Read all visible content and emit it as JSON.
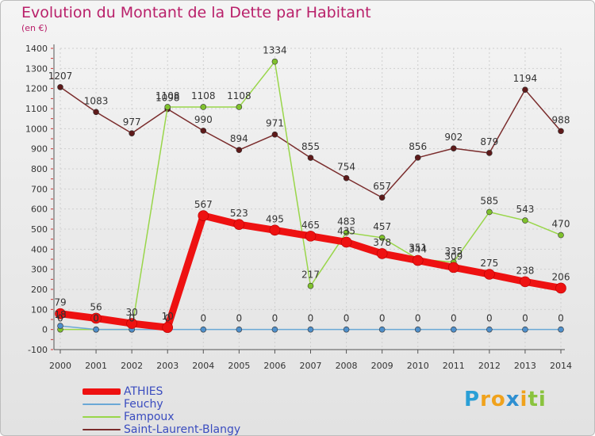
{
  "title": "Evolution du Montant de la Dette par Habitant",
  "subtitle": "(en €)",
  "logo": {
    "text": "Proxiti",
    "letters": [
      "P",
      "r",
      "o",
      "x",
      "i",
      "t",
      "i"
    ],
    "colors": [
      "#2a9fd6",
      "#f0a21c",
      "#f0a21c",
      "#2e8fd1",
      "#f0a21c",
      "#8ac33e",
      "#8ac33e"
    ]
  },
  "chart_data": {
    "type": "line",
    "x": [
      "2000",
      "2001",
      "2002",
      "2003",
      "2004",
      "2005",
      "2006",
      "2007",
      "2008",
      "2009",
      "2010",
      "2011",
      "2012",
      "2013",
      "2014"
    ],
    "ylim": [
      -100,
      1400
    ],
    "yticks": [
      -100,
      0,
      100,
      200,
      300,
      400,
      500,
      600,
      700,
      800,
      900,
      1000,
      1100,
      1200,
      1300,
      1400
    ],
    "grid": true,
    "legend_position": "bottom-left",
    "series": [
      {
        "name": "ATHIES",
        "color": "#ee1111",
        "marker": "#ee1111",
        "width": 9,
        "values": [
          79,
          56,
          30,
          10,
          567,
          523,
          495,
          465,
          435,
          378,
          344,
          309,
          275,
          238,
          206
        ],
        "labels": [
          "79",
          "56",
          "30",
          "10",
          "567",
          "523",
          "495",
          "465",
          "435",
          "378",
          "344",
          "309",
          "275",
          "238",
          "206"
        ]
      },
      {
        "name": "Feuchy",
        "color": "#6aa8d6",
        "marker": "#4f8fca",
        "width": 1.5,
        "values": [
          18,
          0,
          0,
          0,
          0,
          0,
          0,
          0,
          0,
          0,
          0,
          0,
          0,
          0,
          0
        ],
        "labels": [
          "18",
          "0",
          "0",
          "0",
          "0",
          "0",
          "0",
          "0",
          "0",
          "0",
          "0",
          "0",
          "0",
          "0",
          "0"
        ]
      },
      {
        "name": "Fampoux",
        "color": "#99d64a",
        "marker": "#7fc12c",
        "width": 1.5,
        "values": [
          0,
          0,
          0,
          1108,
          1108,
          1108,
          1334,
          217,
          483,
          457,
          351,
          335,
          585,
          543,
          470
        ],
        "labels": [
          "0",
          "0",
          "0",
          "1108",
          "1108",
          "1108",
          "1334",
          "217",
          "483",
          "457",
          "351",
          "335",
          "585",
          "543",
          "470"
        ]
      },
      {
        "name": "Saint-Laurent-Blangy",
        "color": "#7a2c2c",
        "marker": "#5e1a1a",
        "width": 1.5,
        "values": [
          1207,
          1083,
          977,
          1098,
          990,
          894,
          971,
          855,
          754,
          657,
          856,
          902,
          879,
          1194,
          988
        ],
        "labels": [
          "1207",
          "1083",
          "977",
          "1098",
          "990",
          "894",
          "971",
          "855",
          "754",
          "657",
          "856",
          "902",
          "879",
          "1194",
          "988"
        ]
      }
    ]
  }
}
